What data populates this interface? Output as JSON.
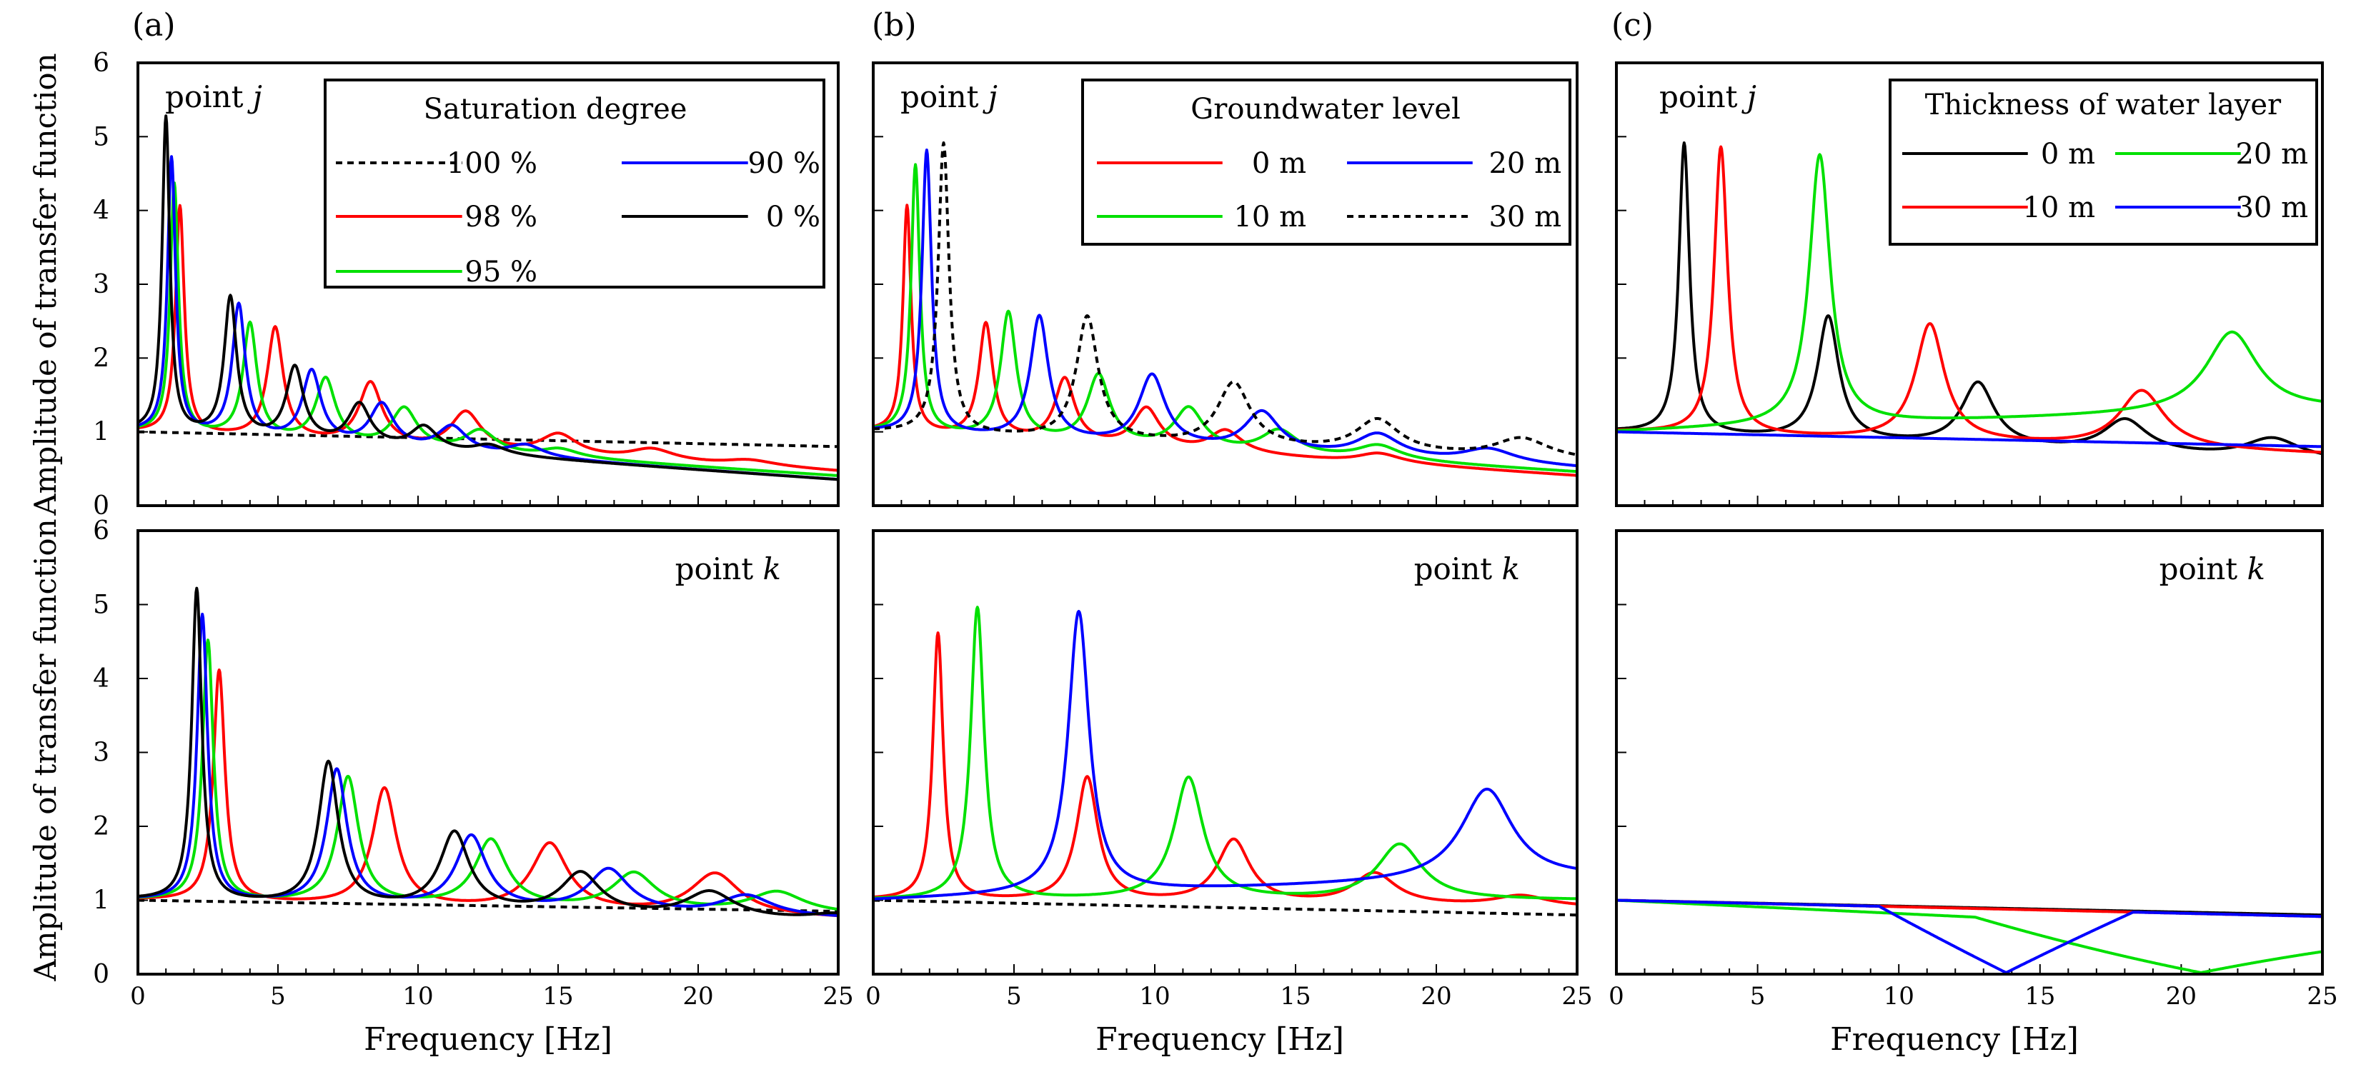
{
  "figure": {
    "panel_labels": [
      "(a)",
      "(b)",
      "(c)"
    ],
    "ylabel": "Amplitude of transfer function",
    "xlabel": "Frequency [Hz]",
    "x_ticks": [
      "0",
      "5",
      "10",
      "15",
      "20",
      "25"
    ],
    "y_ticks": [
      "0",
      "1",
      "2",
      "3",
      "4",
      "5",
      "6"
    ]
  },
  "chart_data": [
    {
      "id": "a-j",
      "type": "line",
      "column": 0,
      "row": 0,
      "point_label": "point",
      "point_symbol": "j",
      "xlim": [
        0,
        25
      ],
      "ylim": [
        0,
        6
      ],
      "legend": {
        "title": "Saturation degree",
        "entries": [
          {
            "label": "100 %",
            "color": "#000000",
            "dashed": true
          },
          {
            "label": "90 %",
            "color": "#0000ff",
            "dashed": false
          },
          {
            "label": "98 %",
            "color": "#ff0000",
            "dashed": false
          },
          {
            "label": "0 %",
            "color": "#000000",
            "dashed": false
          },
          {
            "label": "95 %",
            "color": "#00e000",
            "dashed": false
          }
        ]
      },
      "series": [
        {
          "name": "100 %",
          "color": "#000000",
          "dashed": true,
          "base": 1.0,
          "end": 0.8,
          "peaks": []
        },
        {
          "name": "98 %",
          "color": "#ff0000",
          "dashed": false,
          "base": 1.0,
          "end": 0.45,
          "peaks": [
            {
              "f": 1.5,
              "a": 4.05
            },
            {
              "f": 4.9,
              "a": 2.4
            },
            {
              "f": 8.3,
              "a": 1.65
            },
            {
              "f": 11.7,
              "a": 1.25
            },
            {
              "f": 15.0,
              "a": 0.95
            },
            {
              "f": 18.3,
              "a": 0.75
            },
            {
              "f": 21.7,
              "a": 0.6
            }
          ]
        },
        {
          "name": "95 %",
          "color": "#00e000",
          "dashed": false,
          "base": 1.0,
          "end": 0.4,
          "peaks": [
            {
              "f": 1.3,
              "a": 4.35
            },
            {
              "f": 4.0,
              "a": 2.45
            },
            {
              "f": 6.7,
              "a": 1.7
            },
            {
              "f": 9.5,
              "a": 1.3
            },
            {
              "f": 12.2,
              "a": 1.0
            },
            {
              "f": 15.0,
              "a": 0.75
            }
          ]
        },
        {
          "name": "90 %",
          "color": "#0000ff",
          "dashed": false,
          "base": 1.0,
          "end": 0.35,
          "peaks": [
            {
              "f": 1.2,
              "a": 4.7
            },
            {
              "f": 3.6,
              "a": 2.7
            },
            {
              "f": 6.2,
              "a": 1.8
            },
            {
              "f": 8.7,
              "a": 1.35
            },
            {
              "f": 11.2,
              "a": 1.05
            },
            {
              "f": 13.8,
              "a": 0.8
            }
          ]
        },
        {
          "name": "0 %",
          "color": "#000000",
          "dashed": false,
          "base": 1.0,
          "end": 0.35,
          "peaks": [
            {
              "f": 1.0,
              "a": 5.25
            },
            {
              "f": 3.3,
              "a": 2.8
            },
            {
              "f": 5.6,
              "a": 1.85
            },
            {
              "f": 7.9,
              "a": 1.35
            },
            {
              "f": 10.2,
              "a": 1.05
            },
            {
              "f": 12.5,
              "a": 0.8
            }
          ]
        }
      ]
    },
    {
      "id": "b-j",
      "type": "line",
      "column": 1,
      "row": 0,
      "point_label": "point",
      "point_symbol": "j",
      "xlim": [
        0,
        25
      ],
      "ylim": [
        0,
        6
      ],
      "legend": {
        "title": "Groundwater level",
        "entries": [
          {
            "label": "0 m",
            "color": "#ff0000",
            "dashed": false
          },
          {
            "label": "20 m",
            "color": "#0000ff",
            "dashed": false
          },
          {
            "label": "10 m",
            "color": "#00e000",
            "dashed": false
          },
          {
            "label": "30 m",
            "color": "#000000",
            "dashed": true
          }
        ]
      },
      "series": [
        {
          "name": "0 m",
          "color": "#ff0000",
          "dashed": false,
          "base": 1.0,
          "end": 0.4,
          "peaks": [
            {
              "f": 1.2,
              "a": 4.05
            },
            {
              "f": 4.0,
              "a": 2.45
            },
            {
              "f": 6.8,
              "a": 1.7
            },
            {
              "f": 9.7,
              "a": 1.3
            },
            {
              "f": 12.5,
              "a": 1.0
            },
            {
              "f": 17.9,
              "a": 0.7
            }
          ]
        },
        {
          "name": "10 m",
          "color": "#00e000",
          "dashed": false,
          "base": 1.0,
          "end": 0.45,
          "peaks": [
            {
              "f": 1.5,
              "a": 4.6
            },
            {
              "f": 4.8,
              "a": 2.6
            },
            {
              "f": 8.0,
              "a": 1.75
            },
            {
              "f": 11.2,
              "a": 1.3
            },
            {
              "f": 14.4,
              "a": 1.0
            },
            {
              "f": 17.9,
              "a": 0.8
            }
          ]
        },
        {
          "name": "20 m",
          "color": "#0000ff",
          "dashed": false,
          "base": 1.0,
          "end": 0.5,
          "peaks": [
            {
              "f": 1.9,
              "a": 4.8
            },
            {
              "f": 5.9,
              "a": 2.55
            },
            {
              "f": 9.9,
              "a": 1.75
            },
            {
              "f": 13.8,
              "a": 1.25
            },
            {
              "f": 17.9,
              "a": 0.95
            },
            {
              "f": 21.8,
              "a": 0.75
            }
          ]
        },
        {
          "name": "30 m",
          "color": "#000000",
          "dashed": true,
          "base": 1.0,
          "end": 0.6,
          "peaks": [
            {
              "f": 2.5,
              "a": 4.9
            },
            {
              "f": 7.6,
              "a": 2.55
            },
            {
              "f": 12.8,
              "a": 1.65
            },
            {
              "f": 17.9,
              "a": 1.15
            },
            {
              "f": 23.0,
              "a": 0.9
            }
          ]
        }
      ]
    },
    {
      "id": "c-j",
      "type": "line",
      "column": 2,
      "row": 0,
      "point_label": "point",
      "point_symbol": "j",
      "xlim": [
        0,
        25
      ],
      "ylim": [
        0,
        6
      ],
      "legend": {
        "title": "Thickness of water layer",
        "entries": [
          {
            "label": "0 m",
            "color": "#000000",
            "dashed": false
          },
          {
            "label": "20 m",
            "color": "#00e000",
            "dashed": false
          },
          {
            "label": "10 m",
            "color": "#ff0000",
            "dashed": false
          },
          {
            "label": "30 m",
            "color": "#0000ff",
            "dashed": false
          }
        ]
      },
      "series": [
        {
          "name": "0 m",
          "color": "#000000",
          "dashed": false,
          "base": 1.0,
          "end": 0.6,
          "peaks": [
            {
              "f": 2.4,
              "a": 4.9
            },
            {
              "f": 7.5,
              "a": 2.55
            },
            {
              "f": 12.8,
              "a": 1.65
            },
            {
              "f": 18.0,
              "a": 1.15
            },
            {
              "f": 23.2,
              "a": 0.9
            }
          ]
        },
        {
          "name": "10 m",
          "color": "#ff0000",
          "dashed": false,
          "base": 1.0,
          "end": 0.7,
          "peaks": [
            {
              "f": 3.7,
              "a": 4.85
            },
            {
              "f": 11.1,
              "a": 2.45
            },
            {
              "f": 18.6,
              "a": 1.55
            }
          ]
        },
        {
          "name": "20 m",
          "color": "#00e000",
          "dashed": false,
          "base": 1.0,
          "end": 1.3,
          "peaks": [
            {
              "f": 7.2,
              "a": 4.75
            },
            {
              "f": 21.8,
              "a": 2.35
            }
          ]
        },
        {
          "name": "30 m",
          "color": "#0000ff",
          "dashed": false,
          "base": 1.0,
          "end": 0.8,
          "peaks": []
        }
      ]
    },
    {
      "id": "a-k",
      "type": "line",
      "column": 0,
      "row": 1,
      "point_label": "point",
      "point_symbol": "k",
      "xlim": [
        0,
        25
      ],
      "ylim": [
        0,
        6
      ],
      "series": [
        {
          "name": "100 %",
          "color": "#000000",
          "dashed": true,
          "base": 1.0,
          "end": 0.85,
          "peaks": []
        },
        {
          "name": "98 %",
          "color": "#ff0000",
          "dashed": false,
          "base": 1.0,
          "end": 0.75,
          "peaks": [
            {
              "f": 2.9,
              "a": 4.1
            },
            {
              "f": 8.8,
              "a": 2.5
            },
            {
              "f": 14.7,
              "a": 1.75
            },
            {
              "f": 20.6,
              "a": 1.35
            }
          ]
        },
        {
          "name": "95 %",
          "color": "#00e000",
          "dashed": false,
          "base": 1.0,
          "end": 0.8,
          "peaks": [
            {
              "f": 2.5,
              "a": 4.5
            },
            {
              "f": 7.5,
              "a": 2.65
            },
            {
              "f": 12.6,
              "a": 1.8
            },
            {
              "f": 17.7,
              "a": 1.35
            },
            {
              "f": 22.8,
              "a": 1.1
            }
          ]
        },
        {
          "name": "90 %",
          "color": "#0000ff",
          "dashed": false,
          "base": 1.0,
          "end": 0.75,
          "peaks": [
            {
              "f": 2.3,
              "a": 4.85
            },
            {
              "f": 7.1,
              "a": 2.75
            },
            {
              "f": 11.9,
              "a": 1.85
            },
            {
              "f": 16.8,
              "a": 1.4
            },
            {
              "f": 21.7,
              "a": 1.05
            }
          ]
        },
        {
          "name": "0 %",
          "color": "#000000",
          "dashed": false,
          "base": 1.0,
          "end": 0.7,
          "peaks": [
            {
              "f": 2.1,
              "a": 5.2
            },
            {
              "f": 6.8,
              "a": 2.85
            },
            {
              "f": 11.3,
              "a": 1.9
            },
            {
              "f": 15.8,
              "a": 1.35
            },
            {
              "f": 20.4,
              "a": 1.1
            },
            {
              "f": 24.9,
              "a": 0.8
            }
          ]
        }
      ]
    },
    {
      "id": "b-k",
      "type": "line",
      "column": 1,
      "row": 1,
      "point_label": "point",
      "point_symbol": "k",
      "xlim": [
        0,
        25
      ],
      "ylim": [
        0,
        6
      ],
      "series": [
        {
          "name": "30 m",
          "color": "#000000",
          "dashed": true,
          "base": 1.0,
          "end": 0.8,
          "peaks": []
        },
        {
          "name": "0 m",
          "color": "#ff0000",
          "dashed": false,
          "base": 1.0,
          "end": 0.9,
          "peaks": [
            {
              "f": 2.3,
              "a": 4.6
            },
            {
              "f": 7.6,
              "a": 2.65
            },
            {
              "f": 12.8,
              "a": 1.8
            },
            {
              "f": 17.8,
              "a": 1.35
            },
            {
              "f": 23.0,
              "a": 1.05
            }
          ]
        },
        {
          "name": "10 m",
          "color": "#00e000",
          "dashed": false,
          "base": 1.0,
          "end": 1.0,
          "peaks": [
            {
              "f": 3.7,
              "a": 4.95
            },
            {
              "f": 11.2,
              "a": 2.65
            },
            {
              "f": 18.7,
              "a": 1.75
            }
          ]
        },
        {
          "name": "20 m",
          "color": "#0000ff",
          "dashed": false,
          "base": 1.0,
          "end": 1.3,
          "peaks": [
            {
              "f": 7.3,
              "a": 4.9
            },
            {
              "f": 21.8,
              "a": 2.5
            }
          ]
        }
      ]
    },
    {
      "id": "c-k",
      "type": "line",
      "column": 2,
      "row": 1,
      "point_label": "point",
      "point_symbol": "k",
      "xlim": [
        0,
        25
      ],
      "ylim": [
        0,
        6
      ],
      "series": [
        {
          "name": "0 m",
          "color": "#000000",
          "dashed": false,
          "base": 1.0,
          "end": 0.8,
          "peaks": []
        },
        {
          "name": "10 m",
          "color": "#ff0000",
          "dashed": false,
          "base": 1.0,
          "end": 0.78,
          "peaks": []
        },
        {
          "name": "20 m",
          "color": "#00e000",
          "dashed": false,
          "base": 1.0,
          "end": 0.55,
          "notches": [
            {
              "f": 20.7,
              "a": 0.02,
              "w": 8.0
            }
          ]
        },
        {
          "name": "30 m",
          "color": "#0000ff",
          "dashed": false,
          "base": 1.0,
          "end": 0.78,
          "notches": [
            {
              "f": 13.8,
              "a": 0.02,
              "w": 4.5
            }
          ]
        }
      ]
    }
  ]
}
